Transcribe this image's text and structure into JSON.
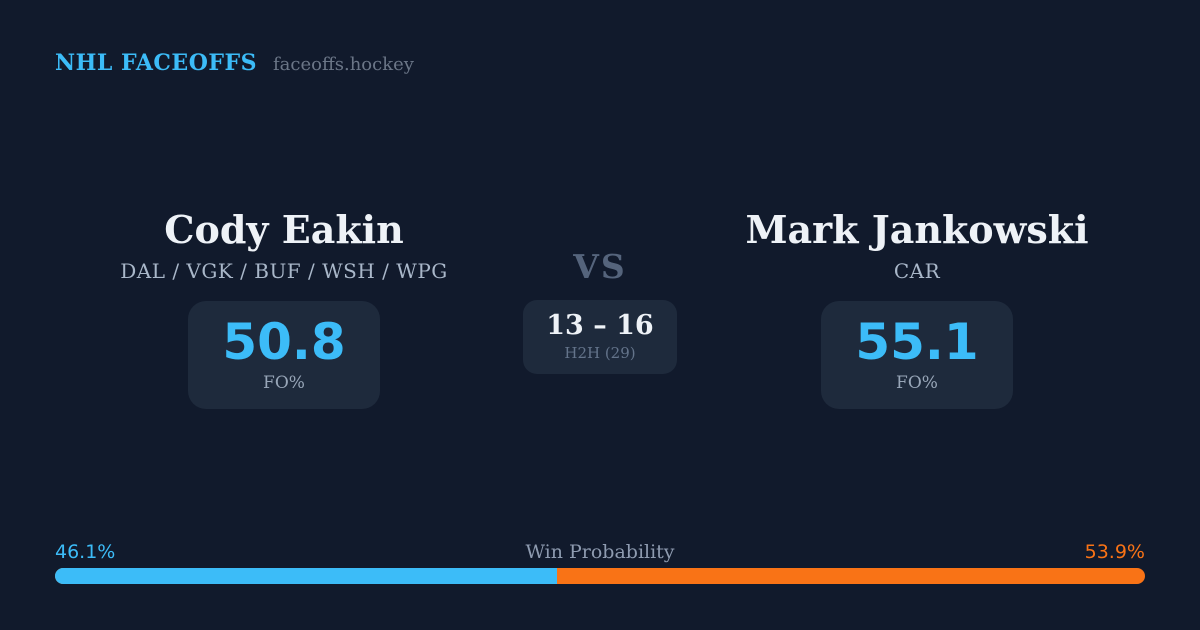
{
  "brand": {
    "title": "NHL FACEOFFS",
    "domain": "faceoffs.hockey"
  },
  "left_player": {
    "name": "Cody Eakin",
    "teams": "DAL / VGK / BUF / WSH / WPG",
    "fo_pct": "50.8",
    "fo_label": "FO%"
  },
  "right_player": {
    "name": "Mark Jankowski",
    "teams": "CAR",
    "fo_pct": "55.1",
    "fo_label": "FO%"
  },
  "matchup": {
    "vs_label": "VS",
    "h2h_score": "13 – 16",
    "h2h_label": "H2H (29)"
  },
  "win_probability": {
    "label": "Win Probability",
    "left_pct_text": "46.1%",
    "right_pct_text": "53.9%",
    "left_value": 46.1,
    "right_value": 53.9
  },
  "colors": {
    "background": "#111a2c",
    "panel": "#1e2a3c",
    "accent_blue": "#3cbcf8",
    "accent_orange": "#f97316",
    "text_primary": "#eef2f7",
    "text_muted": "#98a6b8",
    "text_subtle": "#64748b",
    "vs_gray": "#55647c"
  }
}
